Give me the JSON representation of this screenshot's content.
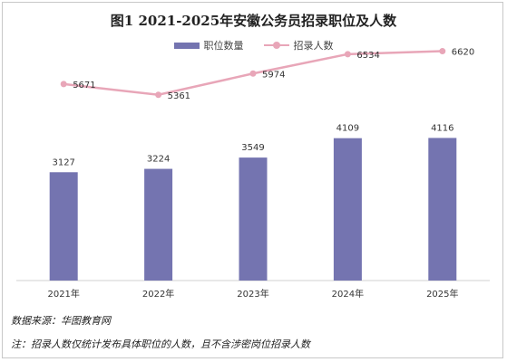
{
  "chart_data": {
    "type": "bar",
    "title": "图1  2021-2025年安徽公务员招录职位及人数",
    "categories": [
      "2021年",
      "2022年",
      "2023年",
      "2024年",
      "2025年"
    ],
    "series": [
      {
        "name": "职位数量",
        "type": "bar",
        "values": [
          3127,
          3224,
          3549,
          4109,
          4116
        ],
        "color": "#7474b0"
      },
      {
        "name": "招录人数",
        "type": "line",
        "values": [
          5671,
          5361,
          5974,
          6534,
          6620
        ],
        "color": "#e8a6b8"
      }
    ],
    "ylim": [
      0,
      7000
    ],
    "legend": "top-center",
    "grid": false
  },
  "footer": {
    "source": "数据来源：华图教育网",
    "note": "注：招录人数仅统计发布具体职位的人数，且不含涉密岗位招录人数"
  }
}
